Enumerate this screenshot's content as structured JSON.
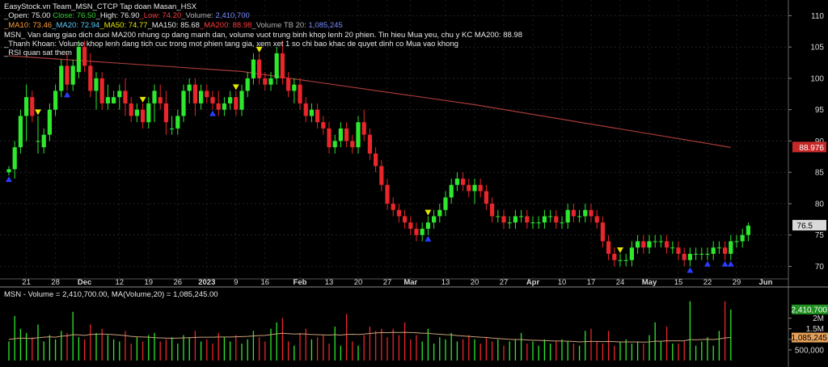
{
  "header": {
    "title": "EasyStock.vn Team_MSN_CTCP Tap doan Masan_HSX",
    "ohlcv": {
      "open_label": "_Open: ",
      "open": "75.00",
      "close_label": "Close: ",
      "close": "76.50",
      "high_label": "_High: ",
      "high": "76.90",
      "low_label": "_Low: ",
      "low": "74.20",
      "volume_label": "_Volume: ",
      "volume": "2,410,700"
    },
    "ma": {
      "ma10_label": "_MA10: ",
      "ma10": "73.46",
      "ma20_label": "_MA20: ",
      "ma20": "72.94",
      "ma50_label": "_MA50: ",
      "ma50": "74.77",
      "ma150_label": "_MA150: ",
      "ma150": "85.68",
      "ma200_label": "_MA200: ",
      "ma200": "88.98",
      "vol_tb_label": "_Volume TB 20: ",
      "vol_tb": "1,085,245"
    },
    "commentary": [
      "MSN_ Van dang giao dich duoi MA200 nhung cp dang manh dan, volume vuot trung binh khop lenh 20 phien. Tin hieu Mua yeu, chu y KC MA200:  88.98",
      "_Thanh Khoan: Volume khop lenh dang tich cuc trong mot phien tang gia, xem xet 1 so chi bao khac de quyet dinh co Mua vao khong",
      "_RSI quan sat them"
    ]
  },
  "volume_panel_label": {
    "prefix": "MSN - ",
    "text": "Volume = 2,410,700.00, MA(Volume,20) = 1,085,245.00"
  },
  "colors": {
    "up": "#2ee82e",
    "down": "#e8262b",
    "ma200": "#a83a3a",
    "vol_ma": "#c8a07a",
    "grid": "#3a3a3a",
    "axis_text": "#d8d8d8",
    "signal_up": "#2a3cff",
    "signal_down": "#e6e600"
  },
  "icons": {
    "buy_signal": "blue-up-triangle-icon",
    "sell_signal": "yellow-down-triangle-icon"
  },
  "chart_data": [
    {
      "type": "candlestick",
      "title": "EasyStock.vn Team_MSN_CTCP Tap doan Masan_HSX",
      "y_ticks": [
        70,
        75,
        80,
        85,
        90,
        95,
        100,
        105,
        110
      ],
      "ylim": [
        68.0,
        112.5
      ],
      "x_tick_labels": [
        "21",
        "28",
        "Dec",
        "12",
        "19",
        "26",
        "2023",
        "9",
        "16",
        "Feb",
        "13",
        "20",
        "27",
        "Mar",
        "13",
        "20",
        "27",
        "Apr",
        "10",
        "17",
        "24",
        "May",
        "15",
        "22",
        "29",
        "Jun"
      ],
      "x_tick_index": [
        3,
        8,
        13,
        19,
        24,
        29,
        34,
        39,
        44,
        50,
        55,
        60,
        65,
        69,
        75,
        80,
        85,
        90,
        95,
        100,
        105,
        110,
        115,
        120,
        125,
        130
      ],
      "last_price_label": "76.5",
      "ma200_label": "88.976",
      "grid": true,
      "candles": [
        [
          85,
          86,
          84.5,
          85.5
        ],
        [
          85.5,
          90,
          84,
          89
        ],
        [
          89,
          95,
          88,
          94
        ],
        [
          94,
          99,
          90,
          97
        ],
        [
          97,
          98,
          93,
          94
        ],
        [
          90,
          94,
          88,
          90
        ],
        [
          89,
          92,
          88,
          91
        ],
        [
          91,
          96,
          90,
          95
        ],
        [
          95,
          99,
          94,
          98
        ],
        [
          98,
          103,
          97,
          102
        ],
        [
          102,
          104,
          98,
          99
        ],
        [
          99,
          103,
          98,
          102
        ],
        [
          101,
          106,
          100,
          105
        ],
        [
          105,
          106,
          101,
          102
        ],
        [
          102,
          104,
          97,
          98
        ],
        [
          98,
          101,
          95,
          100
        ],
        [
          100,
          101,
          95,
          96
        ],
        [
          96,
          99,
          95,
          97
        ],
        [
          96,
          98,
          96,
          97
        ],
        [
          97,
          99,
          95,
          98
        ],
        [
          98,
          100,
          94,
          96
        ],
        [
          96,
          97,
          93,
          94
        ],
        [
          94,
          96,
          93,
          95
        ],
        [
          95,
          96,
          92,
          93
        ],
        [
          93,
          97,
          92,
          96
        ],
        [
          96,
          99,
          93,
          98
        ],
        [
          97,
          99,
          95,
          96
        ],
        [
          96,
          98,
          91,
          93
        ],
        [
          92,
          94,
          91,
          92
        ],
        [
          92,
          95,
          91,
          94
        ],
        [
          94,
          99,
          93,
          98
        ],
        [
          98,
          100,
          96,
          99
        ],
        [
          99,
          100,
          94,
          96
        ],
        [
          96,
          99,
          95,
          98
        ],
        [
          98,
          99,
          96,
          97
        ],
        [
          97,
          98,
          95,
          96
        ],
        [
          96,
          98,
          94,
          95
        ],
        [
          95,
          97,
          94,
          96
        ],
        [
          96,
          98,
          95,
          97
        ],
        [
          97,
          98,
          94,
          95
        ],
        [
          95,
          99,
          94,
          98
        ],
        [
          98,
          101,
          97,
          100
        ],
        [
          100,
          104,
          99,
          103
        ],
        [
          103,
          104,
          99,
          100
        ],
        [
          100,
          101,
          98,
          99
        ],
        [
          99,
          101,
          98,
          100
        ],
        [
          100,
          105,
          99,
          104
        ],
        [
          104,
          106,
          99,
          100
        ],
        [
          100,
          101,
          97,
          98
        ],
        [
          98,
          100,
          96,
          99
        ],
        [
          99,
          100,
          95,
          96
        ],
        [
          96,
          97,
          93,
          94
        ],
        [
          94,
          96,
          93,
          95
        ],
        [
          95,
          96,
          92,
          93
        ],
        [
          93,
          94,
          91,
          92
        ],
        [
          92,
          93,
          88,
          89
        ],
        [
          89,
          91,
          88,
          90
        ],
        [
          90,
          93,
          89,
          92
        ],
        [
          92,
          93,
          89,
          90
        ],
        [
          90,
          91,
          88,
          89
        ],
        [
          89,
          94,
          88,
          93
        ],
        [
          93,
          95,
          90,
          91
        ],
        [
          91,
          92,
          87,
          88
        ],
        [
          88,
          89,
          85,
          86
        ],
        [
          86,
          87,
          82,
          83
        ],
        [
          83,
          84,
          79,
          80
        ],
        [
          80,
          81,
          78,
          79
        ],
        [
          79,
          80,
          77,
          78
        ],
        [
          78,
          79,
          76,
          77
        ],
        [
          77,
          78,
          75,
          76
        ],
        [
          76,
          77,
          74,
          75
        ],
        [
          75,
          77,
          74,
          76
        ],
        [
          76,
          78,
          75,
          77
        ],
        [
          77,
          79,
          76,
          78
        ],
        [
          78,
          80,
          77,
          79
        ],
        [
          79,
          82,
          78,
          81
        ],
        [
          81,
          84,
          80,
          83
        ],
        [
          83,
          85,
          82,
          84
        ],
        [
          84,
          85,
          82,
          83
        ],
        [
          83,
          84,
          81,
          82
        ],
        [
          82,
          84,
          80,
          83
        ],
        [
          83,
          84,
          81,
          82
        ],
        [
          82,
          83,
          79,
          80
        ],
        [
          80,
          81,
          77,
          78
        ],
        [
          78,
          79,
          77,
          78
        ],
        [
          78,
          79,
          76,
          77
        ],
        [
          77,
          78,
          76,
          77
        ],
        [
          77,
          79,
          76,
          78
        ],
        [
          78,
          79,
          77,
          78
        ],
        [
          78,
          79,
          76,
          77
        ],
        [
          77,
          78,
          76,
          77
        ],
        [
          77,
          78,
          76,
          77
        ],
        [
          77,
          79,
          76,
          78
        ],
        [
          78,
          79,
          77,
          78
        ],
        [
          78,
          79,
          76,
          77
        ],
        [
          77,
          78,
          76,
          77
        ],
        [
          77,
          80,
          76,
          79
        ],
        [
          79,
          80,
          77,
          78
        ],
        [
          78,
          79,
          77,
          78
        ],
        [
          78,
          80,
          77,
          79
        ],
        [
          79,
          80,
          77,
          78
        ],
        [
          78,
          79,
          76,
          77
        ],
        [
          77,
          78,
          73,
          74
        ],
        [
          74,
          75,
          71,
          72
        ],
        [
          72,
          73,
          70,
          71
        ],
        [
          71,
          72,
          70,
          71
        ],
        [
          71,
          72,
          70,
          71
        ],
        [
          71,
          74,
          70,
          73
        ],
        [
          73,
          75,
          72,
          74
        ],
        [
          74,
          75,
          72,
          73
        ],
        [
          73,
          75,
          72,
          74
        ],
        [
          74,
          75,
          73,
          74
        ],
        [
          74,
          75,
          73,
          74
        ],
        [
          74,
          75,
          72,
          73
        ],
        [
          73,
          74,
          72,
          73
        ],
        [
          73,
          74,
          71,
          72
        ],
        [
          72,
          73,
          70,
          71
        ],
        [
          71,
          73,
          70,
          72
        ],
        [
          72,
          73,
          71,
          72
        ],
        [
          72,
          73,
          71,
          72
        ],
        [
          72,
          73,
          71,
          72
        ],
        [
          72,
          74,
          71,
          73
        ],
        [
          73,
          74,
          72,
          73
        ],
        [
          73,
          74,
          71,
          72
        ],
        [
          72,
          75,
          71,
          74
        ],
        [
          74,
          75,
          73,
          74
        ],
        [
          74,
          76,
          73,
          75
        ],
        [
          75,
          77,
          74,
          76.5
        ]
      ],
      "ma200": [
        [
          0,
          103.6
        ],
        [
          40,
          101.1
        ],
        [
          80,
          95.8
        ],
        [
          124,
          88.98
        ]
      ],
      "buy_signal_index": [
        0,
        10,
        35,
        72,
        117,
        120,
        123,
        124
      ],
      "sell_signal_index": [
        5,
        23,
        39,
        43,
        72,
        105
      ]
    },
    {
      "type": "bar",
      "title": "MSN - Volume = 2,410,700.00, MA(Volume,20) = 1,085,245.00",
      "series": [
        {
          "name": "Volume",
          "values": [
            900000,
            2100000,
            1500000,
            1300000,
            1100000,
            1700000,
            900000,
            1200000,
            1000000,
            1400000,
            1300000,
            2300000,
            1100000,
            1000000,
            1700000,
            1300000,
            1500000,
            1200000,
            1000000,
            900000,
            1400000,
            800000,
            1100000,
            900000,
            1200000,
            1300000,
            900000,
            1000000,
            1100000,
            800000,
            1200000,
            1100000,
            1400000,
            900000,
            1000000,
            800000,
            1300000,
            1100000,
            900000,
            1200000,
            800000,
            1000000,
            1400000,
            1100000,
            900000,
            1500000,
            1800000,
            2000000,
            900000,
            700000,
            1300000,
            1500000,
            1000000,
            1100000,
            1200000,
            800000,
            1600000,
            700000,
            2200000,
            900000,
            700000,
            1200000,
            1600000,
            1400000,
            1500000,
            1100000,
            1500000,
            1200000,
            1800000,
            1000000,
            1200000,
            900000,
            1500000,
            800000,
            1100000,
            1000000,
            1300000,
            900000,
            1000000,
            1200000,
            1000000,
            800000,
            1100000,
            900000,
            1000000,
            700000,
            900000,
            1000000,
            1300000,
            800000,
            900000,
            700000,
            1000000,
            800000,
            900000,
            1000000,
            900000,
            800000,
            700000,
            1400000,
            1500000,
            900000,
            800000,
            1400000,
            700000,
            900000,
            1000000,
            800000,
            900000,
            800000,
            1200000,
            1800000,
            900000,
            1600000,
            800000,
            800000,
            900000,
            2800000,
            700000,
            900000,
            1100000,
            700000,
            1400000,
            2800000,
            2410700
          ]
        },
        {
          "name": "MA(Volume,20)",
          "values": [
            1000000,
            1030000,
            1060000,
            1050000,
            1040000,
            1080000,
            1100000,
            1120000,
            1100000,
            1150000,
            1170000,
            1220000,
            1210000,
            1190000,
            1230000,
            1240000,
            1250000,
            1240000,
            1220000,
            1200000,
            1180000,
            1140000,
            1120000,
            1110000,
            1100000,
            1080000,
            1070000,
            1060000,
            1050000,
            1060000,
            1070000,
            1080000,
            1090000,
            1100000,
            1100000,
            1100000,
            1110000,
            1110000,
            1110000,
            1120000,
            1130000,
            1140000,
            1160000,
            1180000,
            1190000,
            1220000,
            1260000,
            1290000,
            1270000,
            1250000,
            1260000,
            1250000,
            1230000,
            1220000,
            1210000,
            1200000,
            1220000,
            1200000,
            1230000,
            1240000,
            1230000,
            1250000,
            1280000,
            1300000,
            1320000,
            1310000,
            1330000,
            1320000,
            1330000,
            1320000,
            1310000,
            1290000,
            1290000,
            1260000,
            1240000,
            1220000,
            1210000,
            1180000,
            1160000,
            1140000,
            1120000,
            1100000,
            1090000,
            1060000,
            1040000,
            1020000,
            1000000,
            990000,
            990000,
            970000,
            960000,
            950000,
            940000,
            930000,
            920000,
            920000,
            910000,
            900000,
            880000,
            890000,
            900000,
            900000,
            890000,
            900000,
            890000,
            880000,
            880000,
            880000,
            880000,
            870000,
            880000,
            910000,
            910000,
            930000,
            930000,
            930000,
            930000,
            990000,
            980000,
            990000,
            1000000,
            990000,
            1020000,
            1070000,
            1085245
          ]
        }
      ],
      "y_ticks_labels": [
        "500,000",
        "1M",
        "1.5M",
        "2M"
      ],
      "y_ticks": [
        500000,
        1000000,
        1500000,
        2000000
      ],
      "ylim": [
        0,
        2900000
      ],
      "last_volume_label": "2,410,700",
      "last_ma_label": "1,085,245"
    }
  ]
}
